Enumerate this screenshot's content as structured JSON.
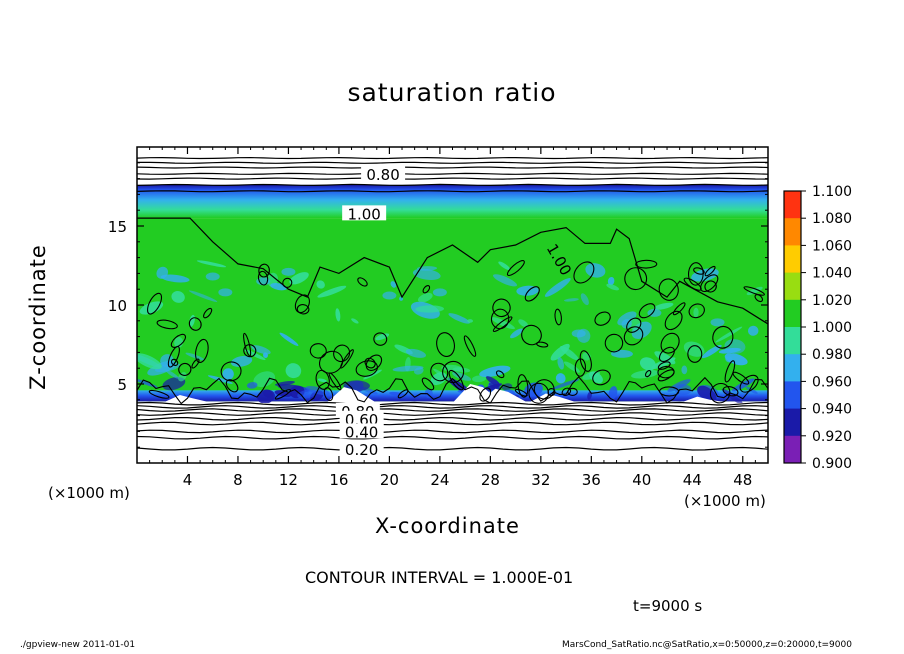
{
  "chart_data": {
    "type": "heatmap",
    "title": "saturation ratio",
    "xlabel": "X-coordinate",
    "ylabel": "Z-coordinate",
    "x_unit": "(×1000 m)",
    "y_unit": "(×1000 m)",
    "xlim": [
      0,
      50
    ],
    "ylim": [
      0,
      20
    ],
    "x_ticks": [
      "4",
      "8",
      "12",
      "16",
      "20",
      "24",
      "28",
      "32",
      "36",
      "40",
      "44",
      "48"
    ],
    "x_tick_values": [
      4,
      8,
      12,
      16,
      20,
      24,
      28,
      32,
      36,
      40,
      44,
      48
    ],
    "y_ticks": [
      "5",
      "10",
      "15"
    ],
    "y_tick_values": [
      5,
      10,
      15
    ],
    "colorbar": {
      "levels": [
        "0.900",
        "0.920",
        "0.940",
        "0.960",
        "0.980",
        "1.000",
        "1.020",
        "1.040",
        "1.060",
        "1.080",
        "1.100"
      ],
      "colors": [
        "#7a1fb5",
        "#1a1aa8",
        "#2255ee",
        "#33b0ee",
        "#33dd99",
        "#22cc22",
        "#99dd11",
        "#ffcc00",
        "#ff8800",
        "#ff3311",
        "#ff7777",
        "#ffaaaa"
      ]
    },
    "contour_labels": [
      {
        "text": "0.80",
        "x": 19.5,
        "z": 18.3
      },
      {
        "text": "1.00",
        "x": 18.0,
        "z": 15.8
      },
      {
        "text": "1.00",
        "x": 33.5,
        "z": 12.9
      },
      {
        "text": "0.80",
        "x": 17.5,
        "z": 3.3
      },
      {
        "text": "0.60",
        "x": 17.8,
        "z": 2.8
      },
      {
        "text": "0.40",
        "x": 17.8,
        "z": 2.0
      },
      {
        "text": "0.20",
        "x": 17.8,
        "z": 0.9
      }
    ],
    "contour_interval_text": "CONTOUR INTERVAL = 1.000E-01",
    "time_text": "t=9000 s"
  },
  "footer": {
    "left": "./gpview-new   2011-01-01",
    "right": "MarsCond_SatRatio.nc@SatRatio,x=0:50000,z=0:20000,t=9000"
  }
}
